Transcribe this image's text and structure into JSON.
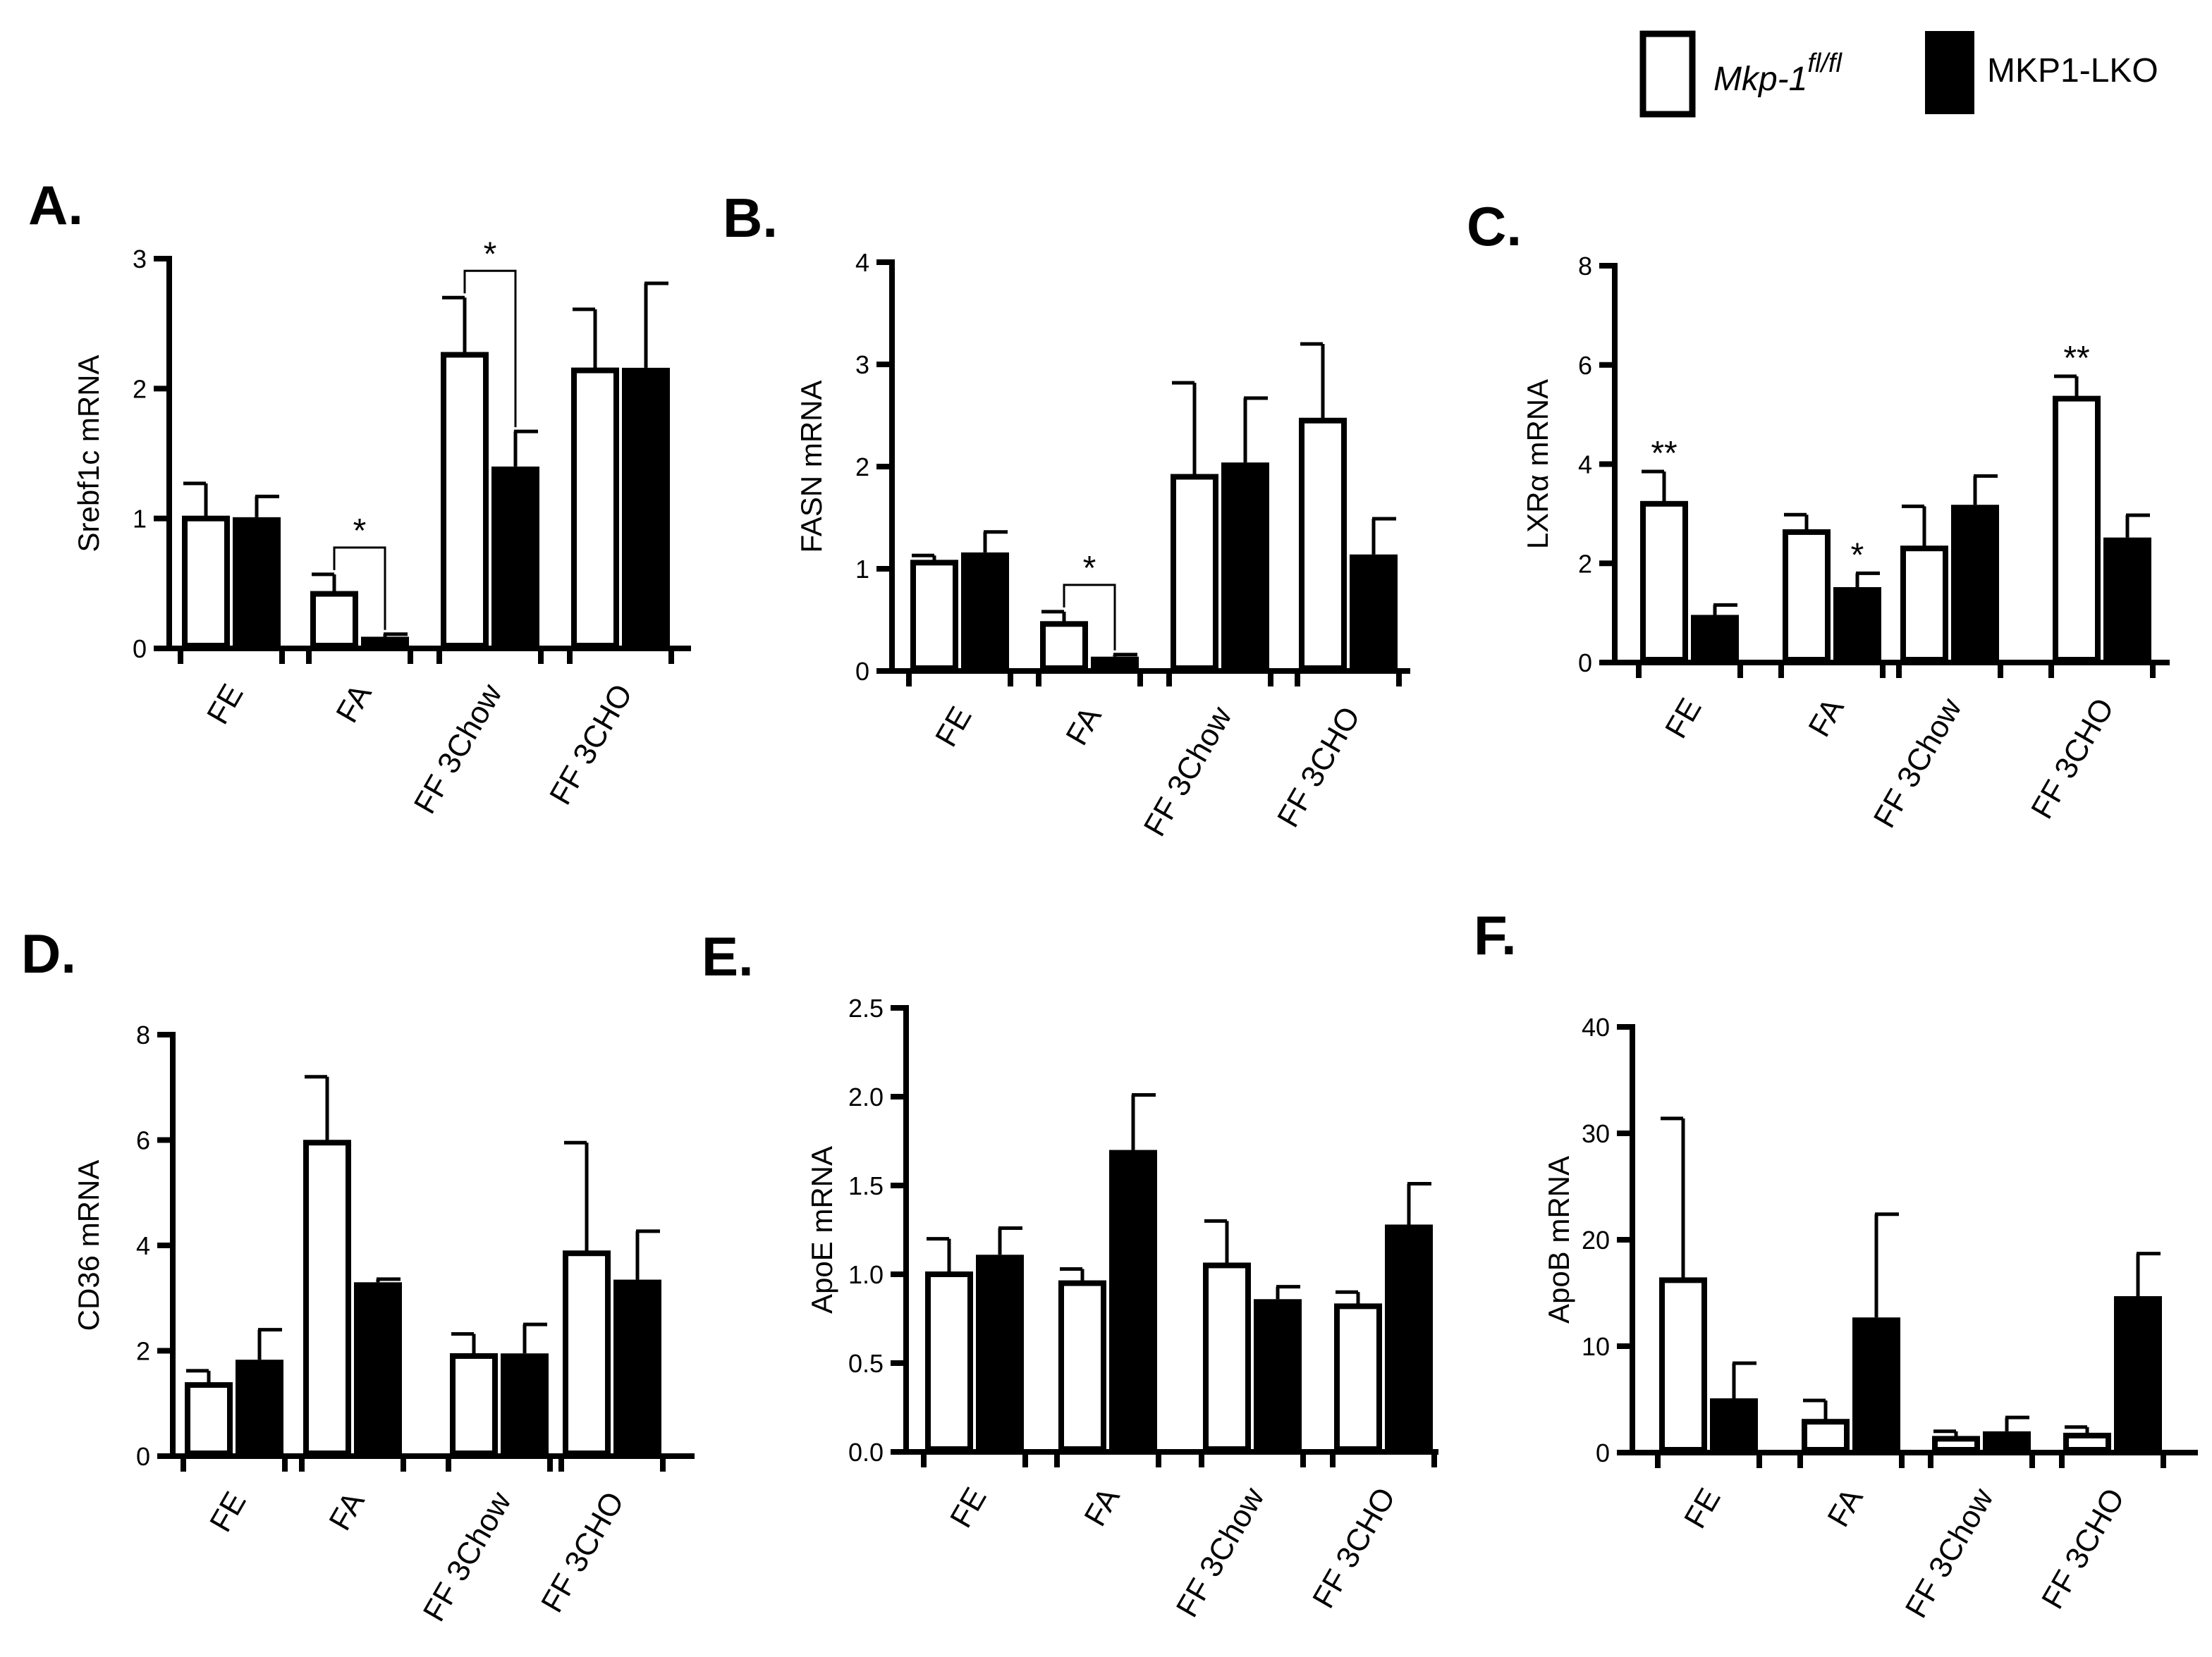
{
  "legend": {
    "items": [
      {
        "label_prefix": "Mkp-1",
        "label_superscript": "fl/fl",
        "fill": "#ffffff",
        "italic": true
      },
      {
        "label": "MKP1-LKO",
        "fill": "#000000"
      }
    ]
  },
  "colors": {
    "wt": "#ffffff",
    "ko": "#000000",
    "stroke": "#000000"
  },
  "chart_data": [
    {
      "type": "bar",
      "panel": "A.",
      "ylabel": "Srebf1c mRNA",
      "ylim": [
        0,
        3
      ],
      "yticks": [
        0,
        1,
        2,
        3
      ],
      "categories": [
        "FE",
        "FA",
        "FF 3Chow",
        "FF 3CHO"
      ],
      "series": [
        {
          "name": "Mkp-1 fl/fl",
          "values": [
            1.0,
            0.42,
            2.26,
            2.14
          ],
          "errors": [
            0.27,
            0.15,
            0.44,
            0.47
          ]
        },
        {
          "name": "MKP1-LKO",
          "values": [
            1.01,
            0.09,
            1.4,
            2.16
          ],
          "errors": [
            0.16,
            0.02,
            0.27,
            0.65
          ]
        }
      ],
      "significance": [
        {
          "group": 1,
          "label": "*",
          "type": "bracket"
        },
        {
          "group": 2,
          "label": "*",
          "type": "bracket"
        }
      ]
    },
    {
      "type": "bar",
      "panel": "B.",
      "ylabel": "FASN mRNA",
      "ylim": [
        0,
        4
      ],
      "yticks": [
        0,
        1,
        2,
        3,
        4
      ],
      "categories": [
        "FE",
        "FA",
        "FF 3Chow",
        "FF 3CHO"
      ],
      "series": [
        {
          "name": "Mkp-1 fl/fl",
          "values": [
            1.06,
            0.46,
            1.9,
            2.45
          ],
          "errors": [
            0.07,
            0.12,
            0.92,
            0.75
          ]
        },
        {
          "name": "MKP1-LKO",
          "values": [
            1.16,
            0.14,
            2.04,
            1.14
          ],
          "errors": [
            0.2,
            0.02,
            0.63,
            0.35
          ]
        }
      ],
      "significance": [
        {
          "group": 1,
          "label": "*",
          "type": "bracket"
        }
      ]
    },
    {
      "type": "bar",
      "panel": "C.",
      "ylabel": "LXRα mRNA",
      "ylim": [
        0,
        8
      ],
      "yticks": [
        0,
        2,
        4,
        6,
        8
      ],
      "categories": [
        "FE",
        "FA",
        "FF 3Chow",
        "FF 3CHO"
      ],
      "series": [
        {
          "name": "Mkp-1 fl/fl",
          "values": [
            3.2,
            2.63,
            2.3,
            5.32
          ],
          "errors": [
            0.65,
            0.35,
            0.85,
            0.45
          ]
        },
        {
          "name": "MKP1-LKO",
          "values": [
            0.96,
            1.52,
            3.18,
            2.52
          ],
          "errors": [
            0.2,
            0.28,
            0.58,
            0.45
          ]
        }
      ],
      "significance": [
        {
          "group": 0,
          "series": 0,
          "label": "**",
          "type": "above"
        },
        {
          "group": 1,
          "series": 1,
          "label": "*",
          "type": "above"
        },
        {
          "group": 3,
          "series": 0,
          "label": "**",
          "type": "above"
        }
      ]
    },
    {
      "type": "bar",
      "panel": "D.",
      "ylabel": "CD36 mRNA",
      "ylim": [
        0,
        8
      ],
      "yticks": [
        0,
        2,
        4,
        6,
        8
      ],
      "categories": [
        "FE",
        "FA",
        "FF 3Chow",
        "FF 3CHO"
      ],
      "series": [
        {
          "name": "Mkp-1 fl/fl",
          "values": [
            1.35,
            5.95,
            1.9,
            3.85
          ],
          "errors": [
            0.27,
            1.25,
            0.42,
            2.1
          ]
        },
        {
          "name": "MKP1-LKO",
          "values": [
            1.83,
            3.3,
            1.95,
            3.35
          ],
          "errors": [
            0.57,
            0.06,
            0.55,
            0.92
          ]
        }
      ],
      "significance": []
    },
    {
      "type": "bar",
      "panel": "E.",
      "ylabel": "ApoE mRNA",
      "ylim": [
        0,
        2.5
      ],
      "yticks": [
        0.0,
        0.5,
        1.0,
        1.5,
        2.0,
        2.5
      ],
      "ytick_labels": [
        "0.0",
        "0.5",
        "1.0",
        "1.5",
        "2.0",
        "2.5"
      ],
      "categories": [
        "FE",
        "FA",
        "FF 3Chow",
        "FF 3CHO"
      ],
      "series": [
        {
          "name": "Mkp-1 fl/fl",
          "values": [
            1.0,
            0.95,
            1.05,
            0.82
          ],
          "errors": [
            0.2,
            0.08,
            0.25,
            0.08
          ]
        },
        {
          "name": "MKP1-LKO",
          "values": [
            1.11,
            1.7,
            0.86,
            1.28
          ],
          "errors": [
            0.15,
            0.31,
            0.07,
            0.23
          ]
        }
      ],
      "significance": []
    },
    {
      "type": "bar",
      "panel": "F.",
      "ylabel": "ApoB mRNA",
      "ylim": [
        0,
        40
      ],
      "yticks": [
        0,
        10,
        20,
        30,
        40
      ],
      "categories": [
        "FE",
        "FA",
        "FF 3Chow",
        "FF 3CHO"
      ],
      "series": [
        {
          "name": "Mkp-1 fl/fl",
          "values": [
            16.2,
            2.9,
            1.3,
            1.6
          ],
          "errors": [
            15.2,
            2.0,
            0.7,
            0.8
          ]
        },
        {
          "name": "MKP1-LKO",
          "values": [
            5.1,
            12.7,
            2.0,
            14.7
          ],
          "errors": [
            3.3,
            9.7,
            1.3,
            4.0
          ]
        }
      ],
      "significance": []
    }
  ]
}
